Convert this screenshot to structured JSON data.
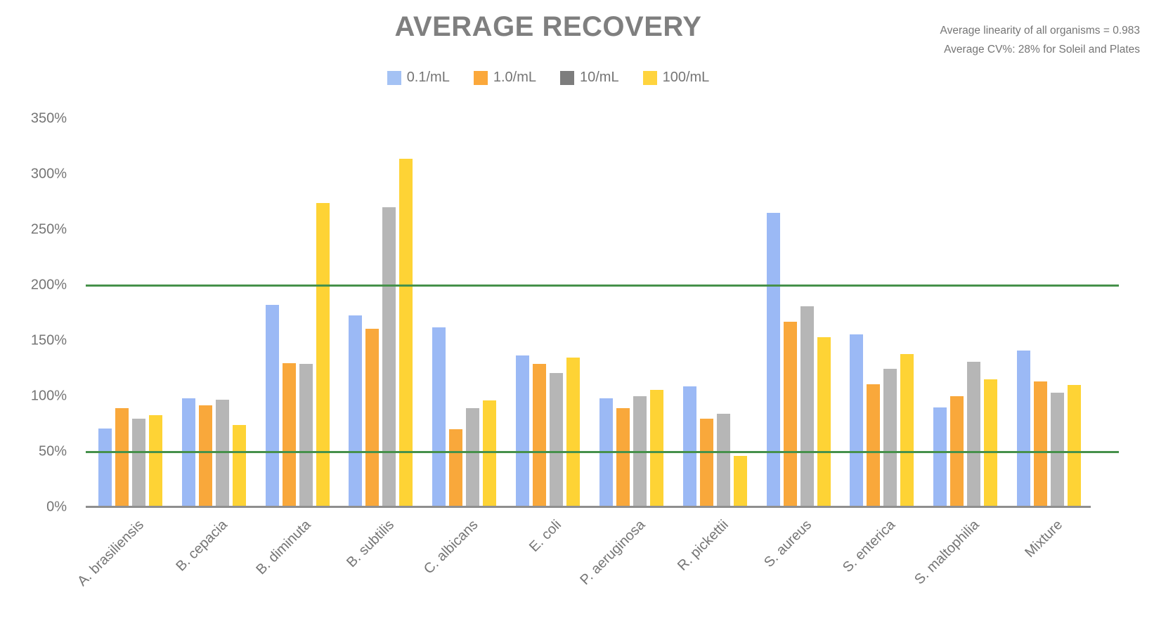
{
  "title": "AVERAGE RECOVERY",
  "annotations": {
    "line1": "Average linearity of all organisms = 0.983",
    "line2": "Average CV%: 28% for Soleil and Plates"
  },
  "chart_data": {
    "type": "bar",
    "title": "AVERAGE RECOVERY",
    "categories": [
      "A. brasiliensis",
      "B. cepacia",
      "B. diminuta",
      "B. subtilis",
      "C. albicans",
      "E. coli",
      "P. aeruginosa",
      "R. pickettii",
      "S. aureus",
      "S. enterica",
      "S. maltophilia",
      "Mixture"
    ],
    "series": [
      {
        "name": "0.1/mL",
        "color": "#9bb9f5",
        "legend_color": "#a4c2f4",
        "values": [
          71,
          98,
          182,
          173,
          162,
          137,
          98,
          109,
          265,
          156,
          90,
          141
        ]
      },
      {
        "name": "1.0/mL",
        "color": "#f9a83b",
        "legend_color": "#fba83b",
        "values": [
          89,
          92,
          130,
          161,
          70,
          129,
          89,
          80,
          167,
          111,
          100,
          113
        ]
      },
      {
        "name": "10/mL",
        "color": "#b6b6b6",
        "legend_color": "#7d7d7d",
        "values": [
          80,
          97,
          129,
          270,
          89,
          121,
          100,
          84,
          181,
          125,
          131,
          103
        ]
      },
      {
        "name": "100/mL",
        "color": "#fed335",
        "legend_color": "#ffd43e",
        "values": [
          83,
          74,
          274,
          314,
          96,
          135,
          106,
          46,
          153,
          138,
          115,
          110
        ]
      }
    ],
    "xlabel": "",
    "ylabel": "",
    "ylim": [
      0,
      350
    ],
    "y_ticks": [
      "0%",
      "50%",
      "100%",
      "150%",
      "200%",
      "250%",
      "300%",
      "350%"
    ],
    "y_tick_values": [
      0,
      50,
      100,
      150,
      200,
      250,
      300,
      350
    ],
    "reference_lines": [
      {
        "value": 200,
        "color": "#46914b"
      },
      {
        "value": 50,
        "color": "#46914b"
      }
    ],
    "grid": false,
    "legend_position": "top-center",
    "axis_color": "#8f8f8f",
    "text_color": "#757575"
  }
}
